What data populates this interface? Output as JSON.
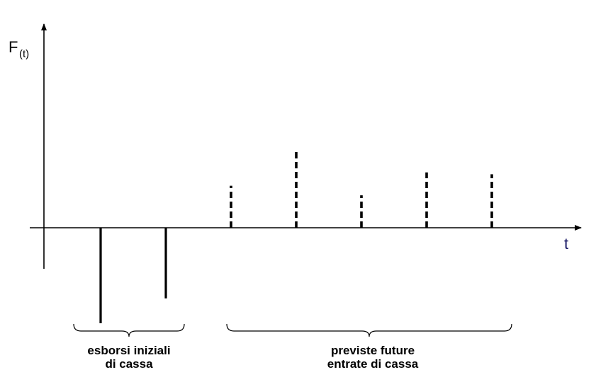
{
  "axes": {
    "y_label": "F",
    "y_label_sub": "(t)",
    "x_label": "t"
  },
  "flows": [
    {
      "period": 1,
      "kind": "outflow",
      "relative_height": -1.0
    },
    {
      "period": 2,
      "kind": "outflow",
      "relative_height": -0.74
    },
    {
      "period": 3,
      "kind": "inflow",
      "relative_height": 0.44
    },
    {
      "period": 4,
      "kind": "inflow",
      "relative_height": 0.8
    },
    {
      "period": 5,
      "kind": "inflow",
      "relative_height": 0.34
    },
    {
      "period": 6,
      "kind": "inflow",
      "relative_height": 0.58
    },
    {
      "period": 7,
      "kind": "inflow",
      "relative_height": 0.56
    }
  ],
  "groups": {
    "outflows": {
      "line1": "esborsi iniziali",
      "line2": "di cassa"
    },
    "inflows": {
      "line1": "previste future",
      "line2": "entrate di cassa"
    }
  },
  "colors": {
    "axis": "#000000",
    "x_label": "#1a1a66"
  }
}
